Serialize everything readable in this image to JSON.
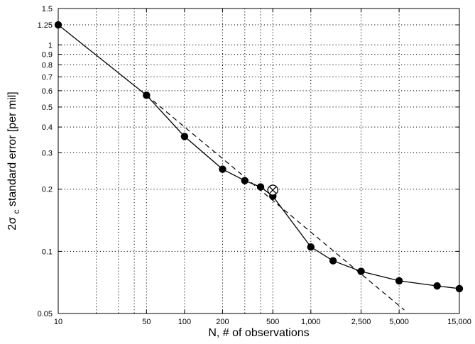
{
  "chart_data": {
    "type": "line",
    "xscale": "log",
    "yscale": "log",
    "xlim": [
      10,
      15000
    ],
    "ylim": [
      0.05,
      1.5
    ],
    "grid": true,
    "xlabel": "N, # of observations",
    "ylabel": {
      "prefix": "2σ",
      "subscript": "c",
      "suffix": " standard error [per mil]"
    },
    "x_ticks": [
      10,
      50,
      100,
      200,
      500,
      1000,
      2500,
      5000,
      15000
    ],
    "x_tick_labels": [
      "10",
      "50",
      "100",
      "200",
      "500",
      "1,000",
      "2,500",
      "5,000",
      "15,000"
    ],
    "x_minor_grid": [
      20,
      30,
      40,
      300,
      400
    ],
    "y_ticks": [
      0.05,
      0.1,
      0.2,
      0.3,
      0.4,
      0.5,
      0.6,
      0.7,
      0.8,
      0.9,
      1,
      1.25,
      1.5
    ],
    "y_tick_labels": [
      "0.05",
      "0.1",
      "0.2",
      "0.3",
      "0.4",
      "0.5",
      "0.6",
      "0.7",
      "0.8",
      "0.9",
      "1",
      "1.25",
      "1.5"
    ],
    "series": [
      {
        "style": "solid-line-filled-circles",
        "x": [
          10,
          50,
          100,
          200,
          300,
          400,
          500,
          1000,
          1500,
          2500,
          5000,
          10000,
          15000
        ],
        "y": [
          1.25,
          0.57,
          0.36,
          0.25,
          0.22,
          0.205,
          0.185,
          0.105,
          0.09,
          0.08,
          0.072,
          0.068,
          0.066
        ]
      },
      {
        "style": "dashed-fit",
        "x": [
          50,
          5500
        ],
        "y": [
          0.57,
          0.052
        ]
      }
    ],
    "annotations": [
      {
        "marker": "circled-x",
        "x": 500,
        "y": 0.198
      }
    ],
    "colors": {
      "line": "#000000",
      "grid": "#000000",
      "background": "#ffffff"
    }
  }
}
